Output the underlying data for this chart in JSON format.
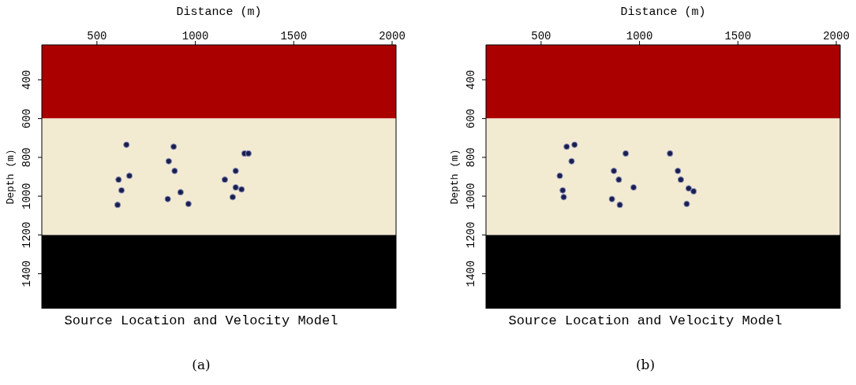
{
  "chart_data": [
    {
      "type": "scatter",
      "title": "Source Location and Velocity Model",
      "xlabel": "Distance (m)",
      "ylabel": "Depth (m)",
      "annotations": [
        "(a)"
      ],
      "marker": "circle",
      "color": "#1a1f4d",
      "x": [
        650,
        890,
        1250,
        1270,
        865,
        895,
        665,
        1205,
        610,
        1150,
        625,
        925,
        1205,
        1235,
        860,
        1190,
        605,
        965
      ],
      "values": [
        735,
        745,
        780,
        780,
        820,
        870,
        895,
        870,
        915,
        915,
        970,
        980,
        955,
        965,
        1015,
        1005,
        1045,
        1040
      ],
      "xlim": [
        220,
        2020
      ],
      "xticks": [
        500,
        1000,
        1500,
        2000
      ],
      "ylim": [
        1580,
        220
      ],
      "yticks": [
        400,
        600,
        800,
        1000,
        1200,
        1400
      ],
      "bands": [
        {
          "axis": "y",
          "from": 220,
          "to": 600,
          "color": "#aa0000"
        },
        {
          "axis": "y",
          "from": 600,
          "to": 1200,
          "color": "#f3ead2"
        },
        {
          "axis": "y",
          "from": 1200,
          "to": 1580,
          "color": "#000000"
        }
      ]
    },
    {
      "type": "scatter",
      "title": "Source Location and Velocity Model",
      "xlabel": "Distance (m)",
      "ylabel": "Depth (m)",
      "annotations": [
        "(b)"
      ],
      "marker": "circle",
      "color": "#1a1f4d",
      "x": [
        630,
        670,
        655,
        930,
        1155,
        595,
        870,
        1195,
        895,
        1210,
        970,
        1250,
        1275,
        610,
        615,
        860,
        900,
        1240
      ],
      "values": [
        745,
        735,
        820,
        780,
        780,
        895,
        870,
        870,
        915,
        915,
        955,
        960,
        975,
        970,
        1005,
        1015,
        1045,
        1040
      ],
      "xlim": [
        220,
        2020
      ],
      "xticks": [
        500,
        1000,
        1500,
        2000
      ],
      "ylim": [
        1580,
        220
      ],
      "yticks": [
        400,
        600,
        800,
        1000,
        1200,
        1400
      ],
      "bands": [
        {
          "axis": "y",
          "from": 220,
          "to": 600,
          "color": "#aa0000"
        },
        {
          "axis": "y",
          "from": 600,
          "to": 1200,
          "color": "#f3ead2"
        },
        {
          "axis": "y",
          "from": 1200,
          "to": 1580,
          "color": "#000000"
        }
      ]
    }
  ]
}
